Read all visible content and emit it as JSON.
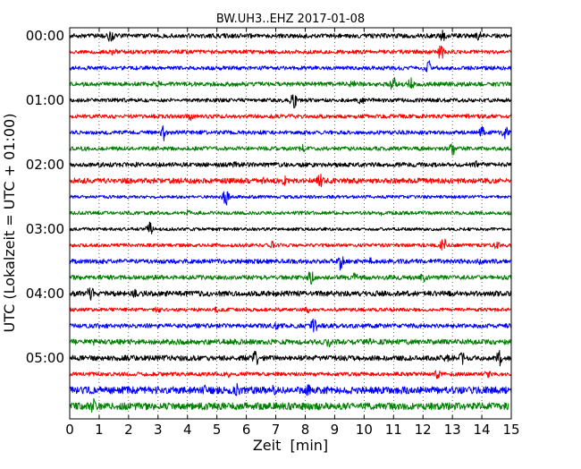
{
  "chart_data": {
    "type": "line",
    "title": "BW.UH3..EHZ 2017-01-08",
    "xlabel": "Zeit  [min]",
    "ylabel": "UTC (Lokalzeit = UTC + 01:00)",
    "xlim": [
      0,
      15
    ],
    "x_ticks": [
      0,
      1,
      2,
      3,
      4,
      5,
      6,
      7,
      8,
      9,
      10,
      11,
      12,
      13,
      14,
      15
    ],
    "x_tick_labels": [
      "0",
      "1",
      "2",
      "3",
      "4",
      "5",
      "6",
      "7",
      "8",
      "9",
      "10",
      "11",
      "12",
      "13",
      "14",
      "15"
    ],
    "y_tick_labels": [
      "00:00",
      "01:00",
      "02:00",
      "03:00",
      "04:00",
      "05:00"
    ],
    "y_tick_rows": [
      0,
      4,
      8,
      12,
      16,
      20
    ],
    "grid": true,
    "row_duration_min": 15,
    "trace_colors": [
      "#000000",
      "#ff0000",
      "#0000ff",
      "#008000"
    ],
    "rows": [
      {
        "start": "00:00",
        "x_end": 15,
        "amp": 0.25,
        "events": [
          [
            1.4,
            0.9
          ],
          [
            12.7,
            0.9
          ],
          [
            13.9,
            0.6
          ]
        ]
      },
      {
        "start": "00:15",
        "x_end": 15,
        "amp": 0.22,
        "events": [
          [
            1.5,
            0.45
          ],
          [
            12.6,
            1.0
          ]
        ]
      },
      {
        "start": "00:30",
        "x_end": 15,
        "amp": 0.22,
        "events": [
          [
            12.2,
            0.9
          ]
        ]
      },
      {
        "start": "00:45",
        "x_end": 15,
        "amp": 0.25,
        "events": [
          [
            3.0,
            0.4
          ],
          [
            9.6,
            0.5
          ],
          [
            11.0,
            1.0
          ],
          [
            11.6,
            0.8
          ]
        ]
      },
      {
        "start": "01:00",
        "x_end": 15,
        "amp": 0.22,
        "events": [
          [
            7.6,
            1.0
          ],
          [
            9.9,
            0.6
          ]
        ]
      },
      {
        "start": "01:15",
        "x_end": 15,
        "amp": 0.22,
        "events": [
          [
            4.1,
            0.5
          ],
          [
            6.3,
            0.4
          ],
          [
            13.5,
            0.4
          ]
        ]
      },
      {
        "start": "01:30",
        "x_end": 15,
        "amp": 0.22,
        "events": [
          [
            3.2,
            1.0
          ],
          [
            14.0,
            0.7
          ],
          [
            14.8,
            0.8
          ]
        ]
      },
      {
        "start": "01:45",
        "x_end": 15,
        "amp": 0.22,
        "events": [
          [
            7.9,
            0.5
          ],
          [
            13.0,
            0.9
          ]
        ]
      },
      {
        "start": "02:00",
        "x_end": 15,
        "amp": 0.25,
        "events": [
          [
            2.2,
            0.45
          ],
          [
            5.6,
            0.4
          ],
          [
            13.8,
            0.5
          ]
        ]
      },
      {
        "start": "02:15",
        "x_end": 15,
        "amp": 0.3,
        "events": [
          [
            6.6,
            0.6
          ],
          [
            7.3,
            0.6
          ],
          [
            8.5,
            1.0
          ]
        ]
      },
      {
        "start": "02:30",
        "x_end": 15,
        "amp": 0.18,
        "events": [
          [
            5.3,
            1.0
          ]
        ]
      },
      {
        "start": "02:45",
        "x_end": 15,
        "amp": 0.2,
        "events": [
          [
            4.0,
            0.45
          ],
          [
            10.6,
            0.3
          ]
        ]
      },
      {
        "start": "03:00",
        "x_end": 15,
        "amp": 0.18,
        "events": [
          [
            2.7,
            0.9
          ]
        ]
      },
      {
        "start": "03:15",
        "x_end": 15,
        "amp": 0.2,
        "events": [
          [
            6.9,
            0.5
          ],
          [
            12.7,
            0.9
          ],
          [
            14.5,
            0.5
          ]
        ]
      },
      {
        "start": "03:30",
        "x_end": 15,
        "amp": 0.25,
        "events": [
          [
            9.2,
            1.0
          ],
          [
            10.2,
            0.5
          ],
          [
            13.9,
            0.4
          ]
        ]
      },
      {
        "start": "03:45",
        "x_end": 15,
        "amp": 0.25,
        "events": [
          [
            8.2,
            0.9
          ],
          [
            9.7,
            0.7
          ],
          [
            12.0,
            0.7
          ]
        ]
      },
      {
        "start": "04:00",
        "x_end": 15,
        "amp": 0.3,
        "events": [
          [
            0.7,
            1.0
          ],
          [
            2.2,
            0.5
          ],
          [
            9.3,
            0.4
          ]
        ]
      },
      {
        "start": "04:15",
        "x_end": 15,
        "amp": 0.2,
        "events": [
          [
            3.0,
            0.5
          ],
          [
            5.0,
            0.4
          ],
          [
            8.1,
            0.4
          ]
        ]
      },
      {
        "start": "04:30",
        "x_end": 15,
        "amp": 0.25,
        "events": [
          [
            7.0,
            0.6
          ],
          [
            8.3,
            1.0
          ]
        ]
      },
      {
        "start": "04:45",
        "x_end": 15,
        "amp": 0.3,
        "events": [
          [
            0.8,
            0.45
          ],
          [
            8.8,
            0.6
          ],
          [
            10.2,
            0.4
          ]
        ]
      },
      {
        "start": "05:00",
        "x_end": 15,
        "amp": 0.3,
        "events": [
          [
            6.3,
            1.0
          ],
          [
            12.8,
            0.5
          ],
          [
            13.3,
            0.9
          ],
          [
            14.6,
            0.9
          ]
        ]
      },
      {
        "start": "05:15",
        "x_end": 15,
        "amp": 0.22,
        "events": [
          [
            5.4,
            0.4
          ],
          [
            12.5,
            0.6
          ],
          [
            14.2,
            0.5
          ]
        ]
      },
      {
        "start": "05:30",
        "x_end": 15,
        "amp": 0.4,
        "events": [
          [
            4.6,
            0.6
          ],
          [
            5.7,
            0.8
          ],
          [
            6.9,
            1.0
          ],
          [
            8.1,
            0.7
          ],
          [
            11.3,
            0.5
          ],
          [
            14.9,
            0.5
          ]
        ]
      },
      {
        "start": "05:45",
        "x_end": 14.9,
        "amp": 0.4,
        "events": [
          [
            0.8,
            0.9
          ],
          [
            2.5,
            0.4
          ],
          [
            4.0,
            0.4
          ]
        ]
      }
    ]
  }
}
